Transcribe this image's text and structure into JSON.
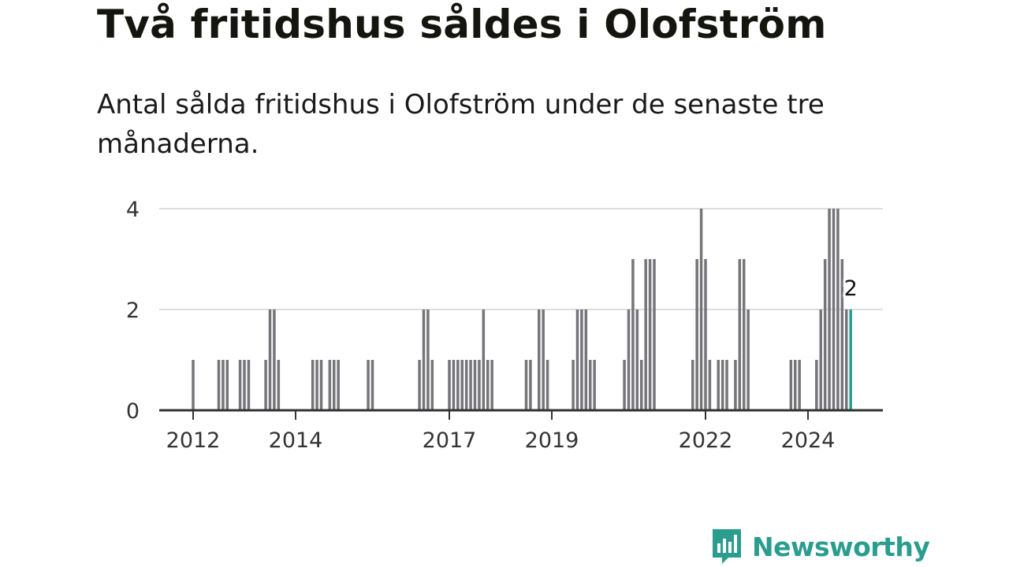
{
  "header": {
    "title": "Två fritidshus såldes i Olofström",
    "subtitle": "Antal sålda fritidshus i Olofström under de senaste tre månaderna."
  },
  "brand": {
    "name": "Newsworthy",
    "color": "#2a9d8f",
    "icon": "newsworthy-logo-icon"
  },
  "colors": {
    "bar": "#75757a",
    "highlight": "#2a9d8f",
    "grid": "#dddddd",
    "axis": "#333333"
  },
  "chart_data": {
    "type": "bar",
    "x_unit": "month",
    "ylim": [
      0,
      4
    ],
    "y_ticks": [
      "0",
      "2",
      "4"
    ],
    "x_ticks": [
      "2012",
      "2014",
      "2017",
      "2019",
      "2022",
      "2024"
    ],
    "grid": true,
    "legend": "none",
    "highlight": {
      "x": "2024-11",
      "value": 2,
      "label": "2"
    },
    "values": [
      {
        "x": "2012-01",
        "y": 1
      },
      {
        "x": "2012-07",
        "y": 1
      },
      {
        "x": "2012-08",
        "y": 1
      },
      {
        "x": "2012-09",
        "y": 1
      },
      {
        "x": "2012-12",
        "y": 1
      },
      {
        "x": "2013-01",
        "y": 1
      },
      {
        "x": "2013-02",
        "y": 1
      },
      {
        "x": "2013-06",
        "y": 1
      },
      {
        "x": "2013-07",
        "y": 2
      },
      {
        "x": "2013-08",
        "y": 2
      },
      {
        "x": "2013-09",
        "y": 1
      },
      {
        "x": "2014-05",
        "y": 1
      },
      {
        "x": "2014-06",
        "y": 1
      },
      {
        "x": "2014-07",
        "y": 1
      },
      {
        "x": "2014-09",
        "y": 1
      },
      {
        "x": "2014-10",
        "y": 1
      },
      {
        "x": "2014-11",
        "y": 1
      },
      {
        "x": "2015-06",
        "y": 1
      },
      {
        "x": "2015-07",
        "y": 1
      },
      {
        "x": "2016-06",
        "y": 1
      },
      {
        "x": "2016-07",
        "y": 2
      },
      {
        "x": "2016-08",
        "y": 2
      },
      {
        "x": "2016-09",
        "y": 1
      },
      {
        "x": "2017-01",
        "y": 1
      },
      {
        "x": "2017-02",
        "y": 1
      },
      {
        "x": "2017-03",
        "y": 1
      },
      {
        "x": "2017-04",
        "y": 1
      },
      {
        "x": "2017-05",
        "y": 1
      },
      {
        "x": "2017-06",
        "y": 1
      },
      {
        "x": "2017-07",
        "y": 1
      },
      {
        "x": "2017-08",
        "y": 1
      },
      {
        "x": "2017-09",
        "y": 2
      },
      {
        "x": "2017-10",
        "y": 1
      },
      {
        "x": "2017-11",
        "y": 1
      },
      {
        "x": "2018-07",
        "y": 1
      },
      {
        "x": "2018-08",
        "y": 1
      },
      {
        "x": "2018-10",
        "y": 2
      },
      {
        "x": "2018-11",
        "y": 2
      },
      {
        "x": "2018-12",
        "y": 1
      },
      {
        "x": "2019-06",
        "y": 1
      },
      {
        "x": "2019-07",
        "y": 2
      },
      {
        "x": "2019-08",
        "y": 2
      },
      {
        "x": "2019-09",
        "y": 2
      },
      {
        "x": "2019-10",
        "y": 1
      },
      {
        "x": "2019-11",
        "y": 1
      },
      {
        "x": "2020-06",
        "y": 1
      },
      {
        "x": "2020-07",
        "y": 2
      },
      {
        "x": "2020-08",
        "y": 3
      },
      {
        "x": "2020-09",
        "y": 2
      },
      {
        "x": "2020-10",
        "y": 1
      },
      {
        "x": "2020-11",
        "y": 3
      },
      {
        "x": "2020-12",
        "y": 3
      },
      {
        "x": "2021-01",
        "y": 3
      },
      {
        "x": "2021-10",
        "y": 1
      },
      {
        "x": "2021-11",
        "y": 3
      },
      {
        "x": "2021-12",
        "y": 4
      },
      {
        "x": "2022-01",
        "y": 3
      },
      {
        "x": "2022-02",
        "y": 1
      },
      {
        "x": "2022-04",
        "y": 1
      },
      {
        "x": "2022-05",
        "y": 1
      },
      {
        "x": "2022-06",
        "y": 1
      },
      {
        "x": "2022-08",
        "y": 1
      },
      {
        "x": "2022-09",
        "y": 3
      },
      {
        "x": "2022-10",
        "y": 3
      },
      {
        "x": "2022-11",
        "y": 2
      },
      {
        "x": "2023-09",
        "y": 1
      },
      {
        "x": "2023-10",
        "y": 1
      },
      {
        "x": "2023-11",
        "y": 1
      },
      {
        "x": "2024-03",
        "y": 1
      },
      {
        "x": "2024-04",
        "y": 2
      },
      {
        "x": "2024-05",
        "y": 3
      },
      {
        "x": "2024-06",
        "y": 4
      },
      {
        "x": "2024-07",
        "y": 4
      },
      {
        "x": "2024-08",
        "y": 4
      },
      {
        "x": "2024-09",
        "y": 3
      },
      {
        "x": "2024-10",
        "y": 2
      },
      {
        "x": "2024-11",
        "y": 2
      }
    ]
  }
}
